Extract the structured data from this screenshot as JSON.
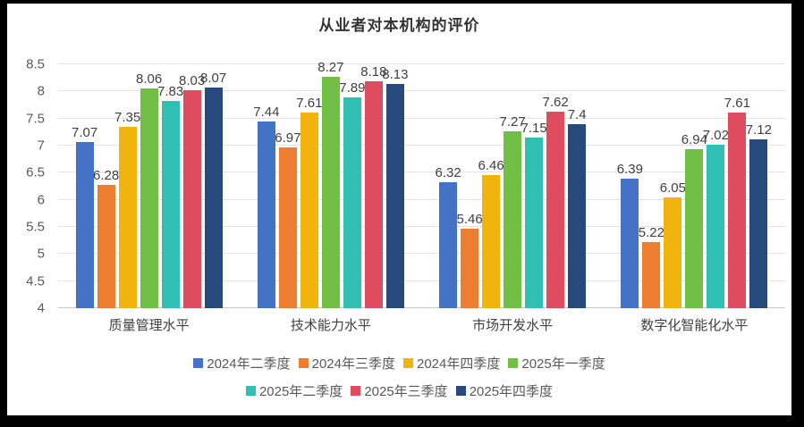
{
  "chart_data": {
    "type": "bar",
    "title": "从业者对本机构的评价",
    "categories": [
      "质量管理水平",
      "技术能力水平",
      "市场开发水平",
      "数字化智能化水平"
    ],
    "series": [
      {
        "name": "2024年二季度",
        "color": "#4472C4",
        "values": [
          7.07,
          7.44,
          6.32,
          6.39
        ],
        "labels": [
          "7.07",
          "7.44",
          "6.32",
          "6.39"
        ]
      },
      {
        "name": "2024年三季度",
        "color": "#ED7D31",
        "values": [
          6.28,
          6.97,
          5.46,
          5.22
        ],
        "labels": [
          "6.28",
          "6.97",
          "5.46",
          "5.22"
        ]
      },
      {
        "name": "2024年四季度",
        "color": "#F1B40E",
        "values": [
          7.35,
          7.61,
          6.46,
          6.05
        ],
        "labels": [
          "7.35",
          "7.61",
          "6.46",
          "6.05"
        ]
      },
      {
        "name": "2025年一季度",
        "color": "#71BF44",
        "values": [
          8.06,
          8.27,
          7.27,
          6.94
        ],
        "labels": [
          "8.06",
          "8.27",
          "7.27",
          "6.94"
        ]
      },
      {
        "name": "2025年二季度",
        "color": "#31BFB4",
        "values": [
          7.83,
          7.89,
          7.15,
          7.02
        ],
        "labels": [
          "7.83",
          "7.89",
          "7.15",
          "7.02"
        ]
      },
      {
        "name": "2025年三季度",
        "color": "#E04C5F",
        "values": [
          8.03,
          8.18,
          7.62,
          7.61
        ],
        "labels": [
          "8.03",
          "8.18",
          "7.62",
          "7.61"
        ]
      },
      {
        "name": "2025年四季度",
        "color": "#28497C",
        "values": [
          8.07,
          8.13,
          7.4,
          7.12
        ],
        "labels": [
          "8.07",
          "8.13",
          "7.4",
          "7.12"
        ]
      }
    ],
    "ylim": [
      4,
      8.5
    ],
    "y_ticks": [
      4,
      4.5,
      5,
      5.5,
      6,
      6.5,
      7,
      7.5,
      8,
      8.5
    ],
    "y_tick_labels": [
      "4",
      "4.5",
      "5",
      "5.5",
      "6",
      "6.5",
      "7",
      "7.5",
      "8",
      "8.5"
    ],
    "grid": true,
    "legend_position": "bottom",
    "legend_row_split": 4,
    "xlabel": "",
    "ylabel": ""
  },
  "frame": {
    "background": "#000000",
    "chart_background": "#FFFFFF"
  }
}
